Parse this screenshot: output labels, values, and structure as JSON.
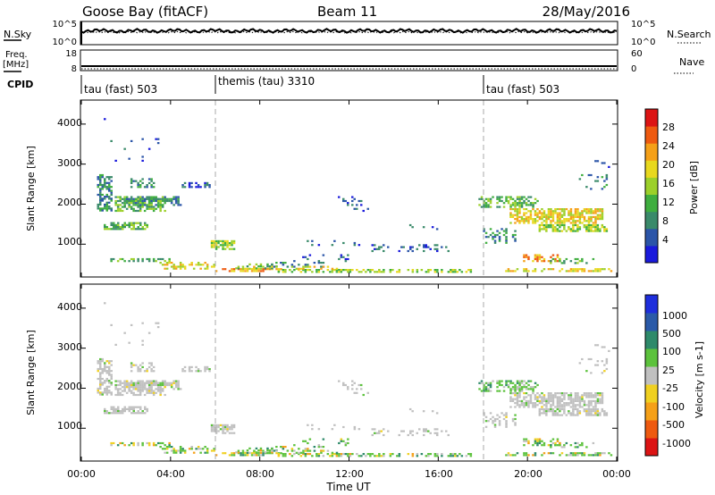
{
  "header": {
    "station": "Goose Bay (fitACF)",
    "beam": "Beam 11",
    "date": "28/May/2016"
  },
  "noise_panel": {
    "left_label": "N.Sky",
    "right_label": "N.Search",
    "left_ticks": [
      "10^5",
      "10^0"
    ],
    "right_ticks": [
      "10^5",
      "10^0"
    ]
  },
  "freq_panel": {
    "left_label_1": "Freq.",
    "left_label_2": "[MHz]",
    "right_label": "Nave",
    "left_ticks": [
      "18",
      "8"
    ],
    "right_ticks": [
      "60",
      "0"
    ]
  },
  "cpid": {
    "label": "CPID",
    "segments": [
      {
        "start_hour": 0,
        "name": "tau (fast) 503"
      },
      {
        "start_hour": 6,
        "name": "themis (tau) 3310"
      },
      {
        "start_hour": 18,
        "name": "tau (fast) 503"
      }
    ]
  },
  "x_axis": {
    "label": "Time UT",
    "ticks": [
      "00:00",
      "04:00",
      "08:00",
      "12:00",
      "16:00",
      "20:00",
      "00:00"
    ],
    "range_hours": [
      0,
      24
    ]
  },
  "chart_data": [
    {
      "type": "heatmap",
      "ylabel": "Slant Range [km]",
      "yticks": [
        "1000",
        "2000",
        "3000",
        "4000"
      ],
      "ylim": [
        180,
        4600
      ],
      "colorbar_label": "Power [dB]",
      "colorbar_ticks": [
        "4",
        "8",
        "12",
        "16",
        "20",
        "24",
        "28"
      ],
      "colors": [
        "#1a1adc",
        "#2b55a8",
        "#3a8a6a",
        "#3fae3f",
        "#9cd02a",
        "#e8d81e",
        "#f5a018",
        "#ee5a10",
        "#dc1414"
      ]
    },
    {
      "type": "heatmap",
      "ylabel": "Slant Range [km]",
      "yticks": [
        "1000",
        "2000",
        "3000",
        "4000"
      ],
      "ylim": [
        180,
        4600
      ],
      "colorbar_label": "Velocity [m s-1]",
      "colorbar_ticks": [
        "1000",
        "500",
        "100",
        "25",
        "-25",
        "-100",
        "-500",
        "-1000"
      ],
      "colors": [
        "#1e2edc",
        "#2a5aa8",
        "#2e8a6a",
        "#5cc23c",
        "#c0c0c0",
        "#f0d020",
        "#f5a018",
        "#ee5a10",
        "#dc1414"
      ]
    }
  ]
}
